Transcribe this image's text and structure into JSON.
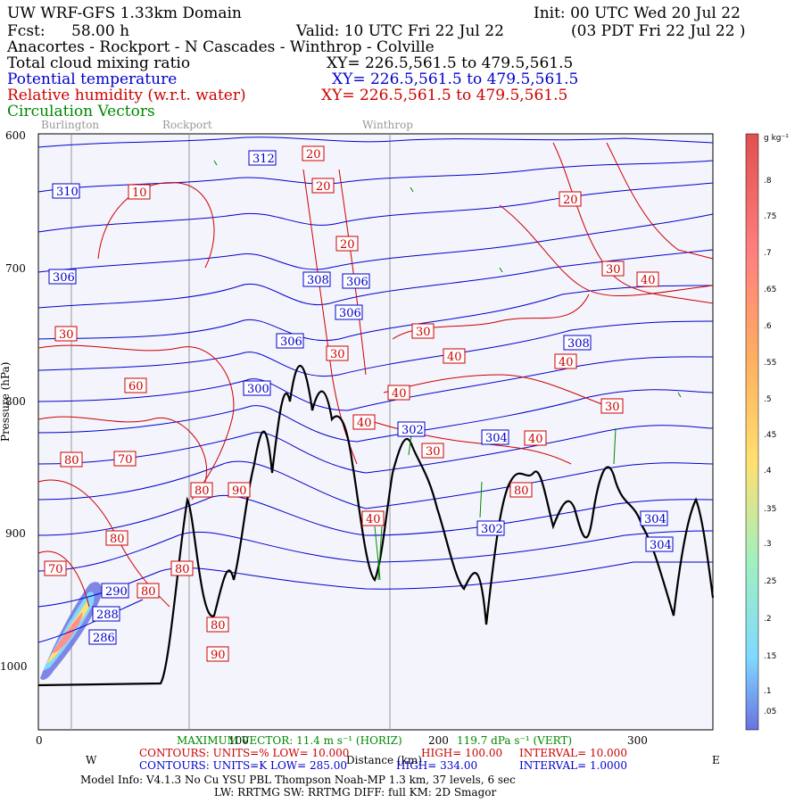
{
  "header": {
    "title": "UW WRF-GFS 1.33km Domain",
    "init": "Init: 00 UTC Wed 20 Jul 22",
    "fcst_label": "Fcst:",
    "fcst_value": "58.00 h",
    "valid": "Valid: 10 UTC Fri 22 Jul 22",
    "valid_local": "(03 PDT Fri 22 Jul 22  )",
    "route": "Anacortes - Rockport - N Cascades - Winthrop - Colville",
    "field1": "Total cloud mixing ratio",
    "field1_xy": "XY= 226.5,561.5 to 479.5,561.5",
    "field2": "Potential temperature",
    "field2_xy": "XY= 226.5,561.5 to 479.5,561.5",
    "field3": "Relative humidity (w.r.t. water)",
    "field3_xy": "XY= 226.5,561.5 to 479.5,561.5",
    "field4": "Circulation Vectors"
  },
  "colors": {
    "black": "#000000",
    "blue": "#0000cc",
    "red": "#cc0000",
    "green": "#008800",
    "bg": "#f4f4fc",
    "gray": "#999999"
  },
  "locations": [
    "Burlington",
    "Rockport",
    "Winthrop"
  ],
  "chart_data": {
    "type": "contour-cross-section",
    "xlim": [
      0,
      340
    ],
    "ylim": [
      1050,
      600
    ],
    "x_ticks": [
      "0",
      "100",
      "200",
      "300"
    ],
    "y_ticks": [
      "600",
      "700",
      "800",
      "900",
      "1000"
    ],
    "xlabel": "Distance (km)",
    "ylabel": "Pressure (hPa)",
    "west_label": "W",
    "east_label": "E",
    "theta_labels": [
      "312",
      "310",
      "306",
      "308",
      "306",
      "306",
      "306",
      "308",
      "300",
      "302",
      "304",
      "302",
      "304",
      "304",
      "290",
      "288",
      "286"
    ],
    "rh_labels": [
      "20",
      "10",
      "20",
      "20",
      "20",
      "30",
      "30",
      "30",
      "40",
      "40",
      "40",
      "40",
      "40",
      "40",
      "60",
      "80",
      "70",
      "80",
      "90",
      "80",
      "80",
      "80",
      "70",
      "80",
      "90",
      "80",
      "30",
      "30",
      "40",
      "30"
    ],
    "colorbar_unit": "g kg⁻¹",
    "colorbar_ticks": [
      ".05",
      ".1",
      ".15",
      ".2",
      ".25",
      ".3",
      ".35",
      ".4",
      ".45",
      ".5",
      ".55",
      ".6",
      ".65",
      ".7",
      ".75",
      ".8"
    ]
  },
  "footer": {
    "max_vector": "MAXIMUM VECTOR:  11.4 m s⁻¹ (HORIZ)",
    "max_vector_vert": "119.7 dPa s⁻¹ (VERT)",
    "rh_contours": "CONTOURS:  UNITS=%  LOW=  10.000",
    "rh_high": "HIGH=  100.00",
    "rh_interval": "INTERVAL=  10.000",
    "th_contours": "CONTOURS:  UNITS=K  LOW=  285.00",
    "th_high": "HIGH=  334.00",
    "th_interval": "INTERVAL=  1.0000",
    "model_info": "Model Info: V4.1.3    No Cu    YSU PBL  Thompson     Noah-MP    1.3 km,   37 levels,    6 sec",
    "model_info2": "LW: RRTMG  SW: RRTMG    DIFF: full    KM: 2D Smagor"
  }
}
